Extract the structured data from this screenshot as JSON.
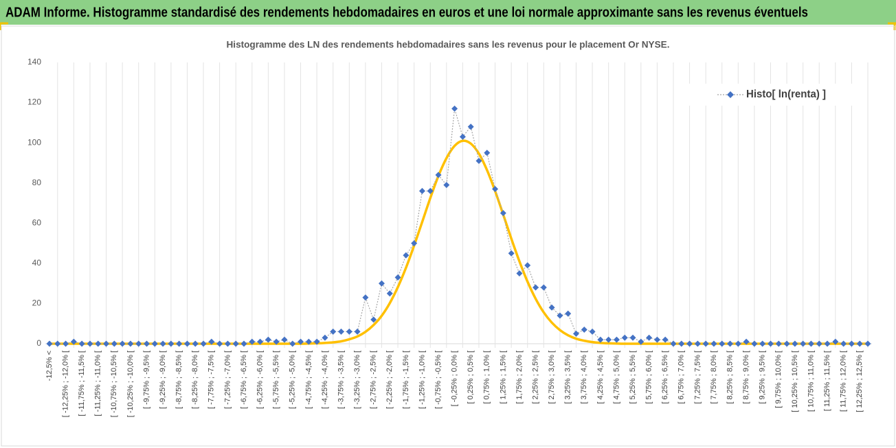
{
  "header": {
    "title": "ADAM Informe. Histogramme standardisé des rendements hebdomadaires en euros et une loi normale approximante sans les revenus éventuels"
  },
  "chart_data": {
    "type": "line",
    "title": "Histogramme des LN des rendements hebdomadaires sans les revenus pour le placement Or NYSE.",
    "categories": [
      "-12,5% <",
      null,
      "[ -12,25% ; -12,0% [",
      null,
      "[ -11,75% ; -11,5% [",
      null,
      "[ -11,25% ; -11,0% [",
      null,
      "[ -10,75% ; -10,5% [",
      null,
      "[ -10,25% ; -10,0% [",
      null,
      "[ -9,75% ; -9,5% [",
      null,
      "[ -9,25% ; -9,0% [",
      null,
      "[ -8,75% ; -8,5% [",
      null,
      "[ -8,25% ; -8,0% [",
      null,
      "[ -7,75% ; -7,5% [",
      null,
      "[ -7,25% ; -7,0% [",
      null,
      "[ -6,75% ; -6,5% [",
      null,
      "[ -6,25% ; -6,0% [",
      null,
      "[ -5,75% ; -5,5% [",
      null,
      "[ -5,25% ; -5,0% [",
      null,
      "[ -4,75% ; -4,5% [",
      null,
      "[ -4,25% ; -4,0% [",
      null,
      "[ -3,75% ; -3,5% [",
      null,
      "[ -3,25% ; -3,0% [",
      null,
      "[ -2,75% ; -2,5% [",
      null,
      "[ -2,25% ; -2,0% [",
      null,
      "[ -1,75% ; -1,5% [",
      null,
      "[ -1,25% ; -1,0% [",
      null,
      "[ -0,75% ; -0,5% [",
      null,
      "[ -0,25% ; 0,0% [",
      null,
      "[ 0,25% ; 0,5% [",
      null,
      "[ 0,75% ; 1,0% [",
      null,
      "[ 1,25% ; 1,5% [",
      null,
      "[ 1,75% ; 2,0% [",
      null,
      "[ 2,25% ; 2,5% [",
      null,
      "[ 2,75% ; 3,0% [",
      null,
      "[ 3,25% ; 3,5% [",
      null,
      "[ 3,75% ; 4,0% [",
      null,
      "[ 4,25% ; 4,5% [",
      null,
      "[ 4,75% ; 5,0% [",
      null,
      "[ 5,25% ; 5,5% [",
      null,
      "[ 5,75% ; 6,0% [",
      null,
      "[ 6,25% ; 6,5% [",
      null,
      "[ 6,75% ; 7,0% [",
      null,
      "[ 7,25% ; 7,5% [",
      null,
      "[ 7,75% ; 8,0% [",
      null,
      "[ 8,25% ; 8,5% [",
      null,
      "[ 8,75% ; 9,0% [",
      null,
      "[ 9,25% ; 9,5% [",
      null,
      "[ 9,75% ; 10,0% [",
      null,
      "[ 10,25% ; 10,5% [",
      null,
      "[ 10,75% ; 11,0% [",
      null,
      "[ 11,25% ; 11,5% [",
      null,
      "[ 11,75% ; 12,0% [",
      null,
      "[ 12,25% ; 12,5% [",
      null
    ],
    "series": [
      {
        "name": "Histo[ ln(renta) ]",
        "color": "#4472c4",
        "line_color": "#a5a5a5",
        "line_style": "dotted",
        "marker": "diamond",
        "values": [
          0,
          0,
          0,
          1,
          0,
          0,
          0,
          0,
          0,
          0,
          0,
          0,
          0,
          0,
          0,
          0,
          0,
          0,
          0,
          0,
          1,
          0,
          0,
          0,
          0,
          1,
          1,
          2,
          1,
          2,
          0,
          1,
          1,
          1,
          3,
          6,
          6,
          6,
          6,
          23,
          12,
          30,
          25,
          33,
          44,
          50,
          76,
          76,
          84,
          79,
          117,
          103,
          108,
          91,
          95,
          77,
          65,
          45,
          35,
          39,
          28,
          28,
          18,
          14,
          15,
          5,
          7,
          6,
          2,
          2,
          2,
          3,
          3,
          1,
          3,
          2,
          2,
          0,
          0,
          0,
          0,
          0,
          0,
          0,
          0,
          0,
          1,
          0,
          0,
          0,
          0,
          0,
          0,
          0,
          0,
          0,
          0,
          1,
          0,
          0,
          0,
          0
        ]
      },
      {
        "color": "#ffc000",
        "line_style": "smooth",
        "marker": "none",
        "legend": false,
        "values": [
          0,
          0,
          0,
          0,
          0,
          0,
          0,
          0,
          0,
          0,
          0,
          0,
          0,
          0,
          0,
          0,
          0,
          0,
          0,
          0,
          0,
          0,
          0,
          0,
          0,
          0,
          0,
          0,
          0,
          0,
          0,
          0,
          0.1,
          0.2,
          0.4,
          0.7,
          1.2,
          2.2,
          3.6,
          5.9,
          9.3,
          13.9,
          20.2,
          28.2,
          37.8,
          48.8,
          60.6,
          72.5,
          83.5,
          92.4,
          98.5,
          101,
          99.6,
          94.6,
          86.4,
          76.0,
          64.3,
          52.3,
          41.0,
          30.9,
          22.4,
          15.6,
          10.5,
          6.8,
          4.2,
          2.5,
          1.5,
          0.8,
          0.4,
          0.2,
          0.1,
          0,
          0,
          0,
          0,
          0,
          0,
          0,
          0,
          0,
          0,
          0,
          0,
          0,
          0,
          0,
          0,
          0,
          0,
          0,
          0,
          0,
          0,
          0,
          0,
          0,
          0,
          0,
          0,
          0,
          0,
          0
        ]
      }
    ],
    "ylim": [
      0,
      140
    ],
    "yticks": [
      0,
      20,
      40,
      60,
      80,
      100,
      120,
      140
    ],
    "xgrid": true,
    "ygrid": false,
    "legend": "top-right"
  }
}
